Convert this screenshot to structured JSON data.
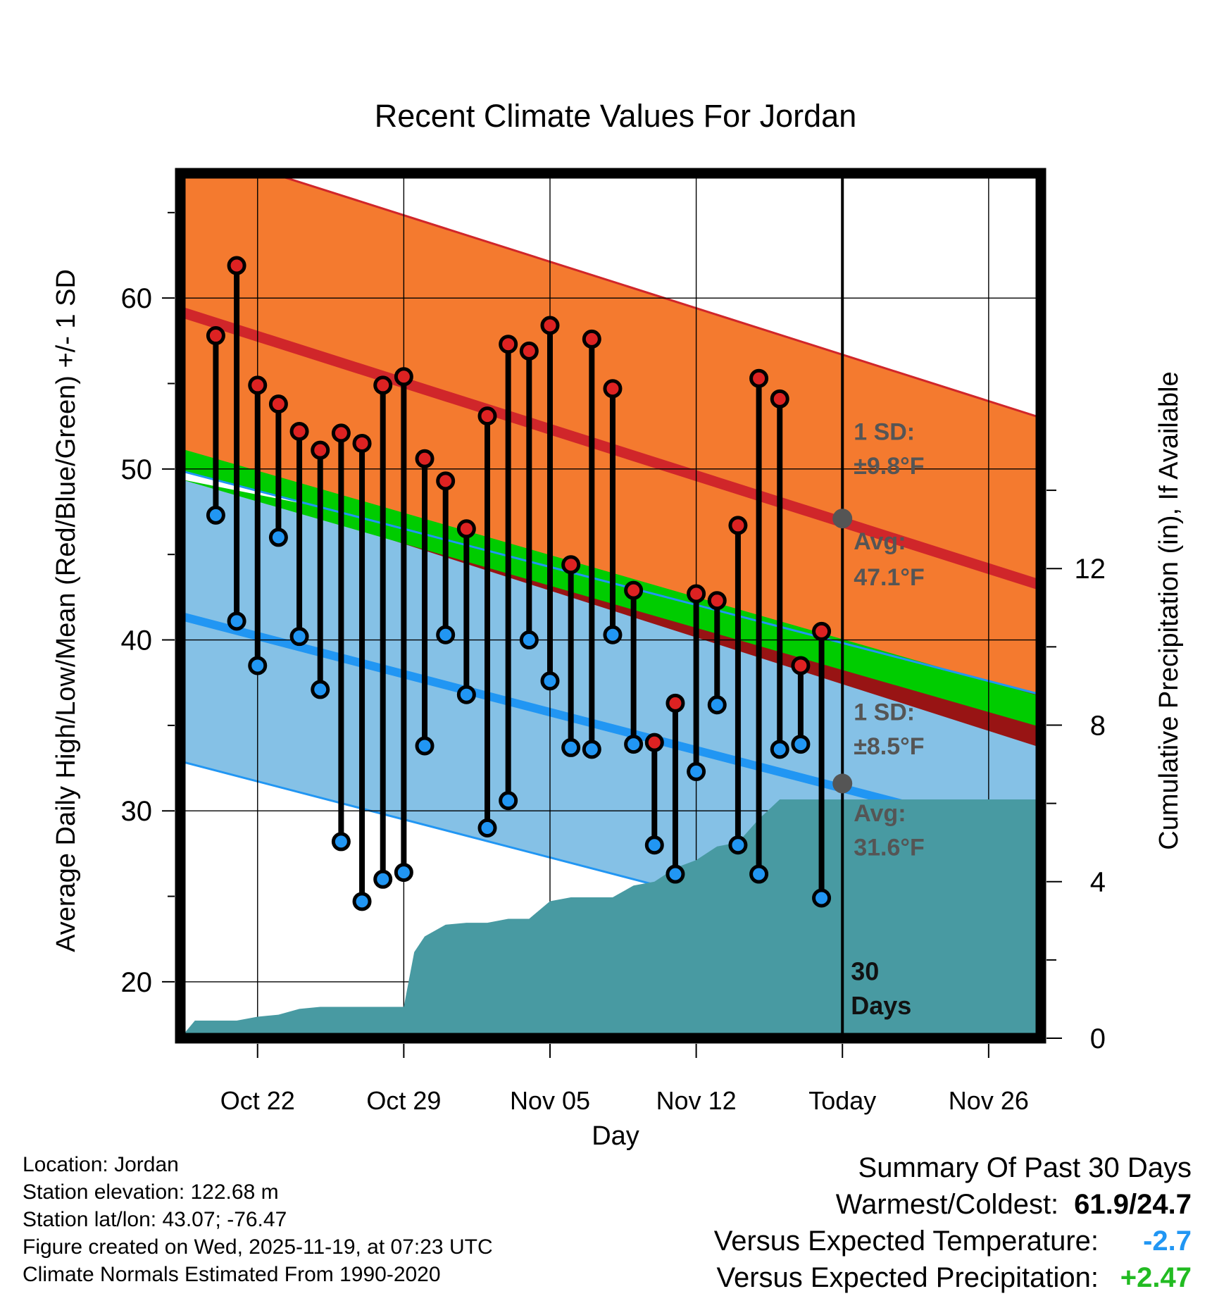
{
  "title": "Recent Climate Values For Jordan",
  "xlabel": "Day",
  "ylabel_left": "Average Daily High/Low/Mean (Red/Blue/Green) +/- 1 SD",
  "ylabel_right": "Cumulative Precipitation (in), If Available",
  "colors": {
    "high_band": "#f47a2f",
    "high_line": "#d0262a",
    "low_band": "#85c1e6",
    "low_line": "#2196f3",
    "mean_line": "#00cc00",
    "dark_red": "#981414",
    "precip": "#489aa2",
    "annot": "#555555",
    "temp_anom": "#2196f3",
    "precip_anom": "#22bb22"
  },
  "annotations": {
    "high_sd_line1": "1 SD:",
    "high_sd_line2": "±9.8°F",
    "high_avg_line1": "Avg:",
    "high_avg_line2": "47.1°F",
    "low_sd_line1": "1 SD:",
    "low_sd_line2": "±8.5°F",
    "low_avg_line1": "Avg:",
    "low_avg_line2": "31.6°F",
    "days_line1": "30",
    "days_line2": "Days"
  },
  "info": {
    "location": "Location: Jordan",
    "elevation": "Station elevation: 122.68 m",
    "latlon": "Station lat/lon: 43.07; -76.47",
    "created": "Figure created on Wed, 2025-11-19, at 07:23 UTC",
    "normals": "Climate Normals Estimated From 1990-2020"
  },
  "summary": {
    "title": "Summary Of Past 30 Days",
    "warm_cold_label": "Warmest/Coldest:",
    "warm_cold_value": "61.9/24.7",
    "temp_label": "Versus Expected Temperature:",
    "temp_value": "-2.7",
    "precip_label": "Versus Expected Precipitation:",
    "precip_value": "+2.47"
  },
  "chart_data": {
    "type": "line",
    "title": "Recent Climate Values For Jordan",
    "xlabel": "Day",
    "x_range_days": [
      -31.7,
      9.5
    ],
    "x_ticks": [
      {
        "day": -28,
        "label": "Oct 22"
      },
      {
        "day": -21,
        "label": "Oct 29"
      },
      {
        "day": -14,
        "label": "Nov 05"
      },
      {
        "day": -7,
        "label": "Nov 12"
      },
      {
        "day": 0,
        "label": "Today"
      },
      {
        "day": 7,
        "label": "Nov 26"
      }
    ],
    "y_left": {
      "label": "Average Daily High/Low/Mean (Red/Blue/Green) +/- 1 SD",
      "range": [
        16.7,
        67.3
      ],
      "ticks": [
        20,
        30,
        40,
        50,
        60
      ]
    },
    "y_right": {
      "label": "Cumulative Precipitation (in), If Available",
      "range": [
        0,
        22.1
      ],
      "ticks": [
        0,
        4,
        8,
        12
      ]
    },
    "normal_high": {
      "start": 59.2,
      "end": 43.2,
      "sd": 9.8
    },
    "normal_low": {
      "start": 41.4,
      "end": 28.3,
      "sd": 8.5
    },
    "normal_mean": {
      "start": 50.3,
      "end": 35.8
    },
    "observed_mean_line": {
      "start": 49.8,
      "end": 33.7
    },
    "days": [
      -30,
      -29,
      -28,
      -27,
      -26,
      -25,
      -24,
      -23,
      -22,
      -21,
      -20,
      -19,
      -18,
      -17,
      -16,
      -15,
      -14,
      -13,
      -12,
      -11,
      -10,
      -9,
      -8,
      -7,
      -6,
      -5,
      -4,
      -3,
      -2,
      -1
    ],
    "highs": [
      57.8,
      61.9,
      54.9,
      53.8,
      52.2,
      51.1,
      52.1,
      51.5,
      54.9,
      55.4,
      50.6,
      49.3,
      46.5,
      53.1,
      57.3,
      56.9,
      58.4,
      44.4,
      57.6,
      54.7,
      42.9,
      34.0,
      36.3,
      42.7,
      42.3,
      46.7,
      55.3,
      54.1,
      38.5,
      40.5
    ],
    "lows": [
      47.3,
      41.1,
      38.5,
      46.0,
      40.2,
      37.1,
      28.2,
      24.7,
      26.0,
      26.4,
      33.8,
      40.3,
      36.8,
      29.0,
      30.6,
      40.0,
      37.6,
      33.7,
      33.6,
      40.3,
      33.9,
      28.0,
      26.3,
      32.3,
      36.2,
      28.0,
      26.3,
      33.6,
      33.9,
      24.9
    ],
    "precip_cumulative": {
      "days": [
        -31.7,
        -31,
        -30,
        -29,
        -28,
        -27,
        -26,
        -25,
        -24,
        -23,
        -22,
        -21,
        -20.5,
        -20,
        -19,
        -18,
        -17,
        -16,
        -15,
        -14,
        -13,
        -12,
        -11,
        -10,
        -9,
        -8,
        -7,
        -6,
        -5,
        -4,
        -3,
        -2,
        -1,
        0,
        9.5
      ],
      "values": [
        0,
        0.45,
        0.45,
        0.45,
        0.55,
        0.6,
        0.75,
        0.8,
        0.8,
        0.8,
        0.8,
        0.8,
        2.2,
        2.6,
        2.9,
        2.95,
        2.95,
        3.05,
        3.05,
        3.5,
        3.6,
        3.6,
        3.6,
        3.9,
        4.0,
        4.35,
        4.55,
        4.9,
        5.0,
        5.6,
        6.1,
        6.1,
        6.1,
        6.1,
        6.1
      ]
    },
    "markers": [
      {
        "day": 0,
        "value": 47.1,
        "label": "Avg high"
      },
      {
        "day": 0,
        "value": 31.6,
        "label": "Avg low"
      }
    ]
  }
}
